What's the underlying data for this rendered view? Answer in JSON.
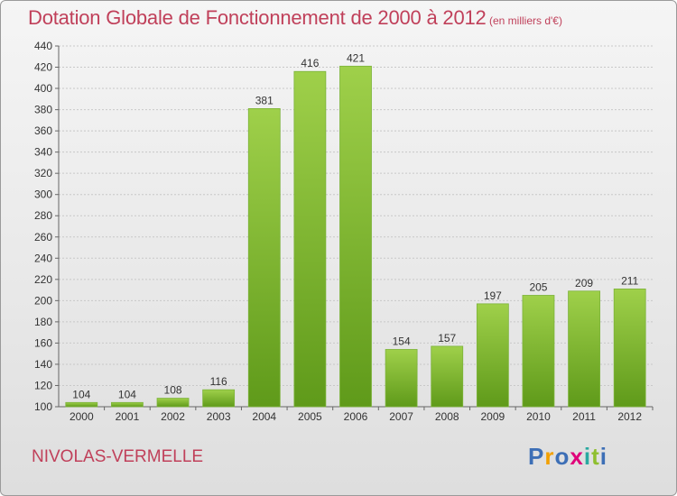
{
  "title": "Dotation Globale de Fonctionnement de 2000 à 2012",
  "subtitle": "(en milliers d'€)",
  "commune": "NIVOLAS-VERMELLE",
  "logo": {
    "text": "Proxiti",
    "letters": [
      "P",
      "r",
      "o",
      "x",
      "i",
      "t",
      "i"
    ],
    "colors": [
      "#3d6fb6",
      "#f2a000",
      "#3d6fb6",
      "#e0007a",
      "#2aa9a0",
      "#8fbf2f",
      "#3d6fb6"
    ]
  },
  "colors": {
    "bar_top": "#9fd04a",
    "bar_bottom": "#5f9a1a",
    "title": "#c0405a",
    "grid": "#c8c8c8"
  },
  "chart_data": {
    "type": "bar",
    "title": "Dotation Globale de Fonctionnement de 2000 à 2012",
    "subtitle": "(en milliers d'€)",
    "categories": [
      "2000",
      "2001",
      "2002",
      "2003",
      "2004",
      "2005",
      "2006",
      "2007",
      "2008",
      "2009",
      "2010",
      "2011",
      "2012"
    ],
    "values": [
      104,
      104,
      108,
      116,
      381,
      416,
      421,
      154,
      157,
      197,
      205,
      209,
      211
    ],
    "ylim": [
      100,
      440
    ],
    "yticks": [
      100,
      120,
      140,
      160,
      180,
      200,
      220,
      240,
      260,
      280,
      300,
      320,
      340,
      360,
      380,
      400,
      420,
      440
    ],
    "grid": true,
    "data_labels": true
  }
}
